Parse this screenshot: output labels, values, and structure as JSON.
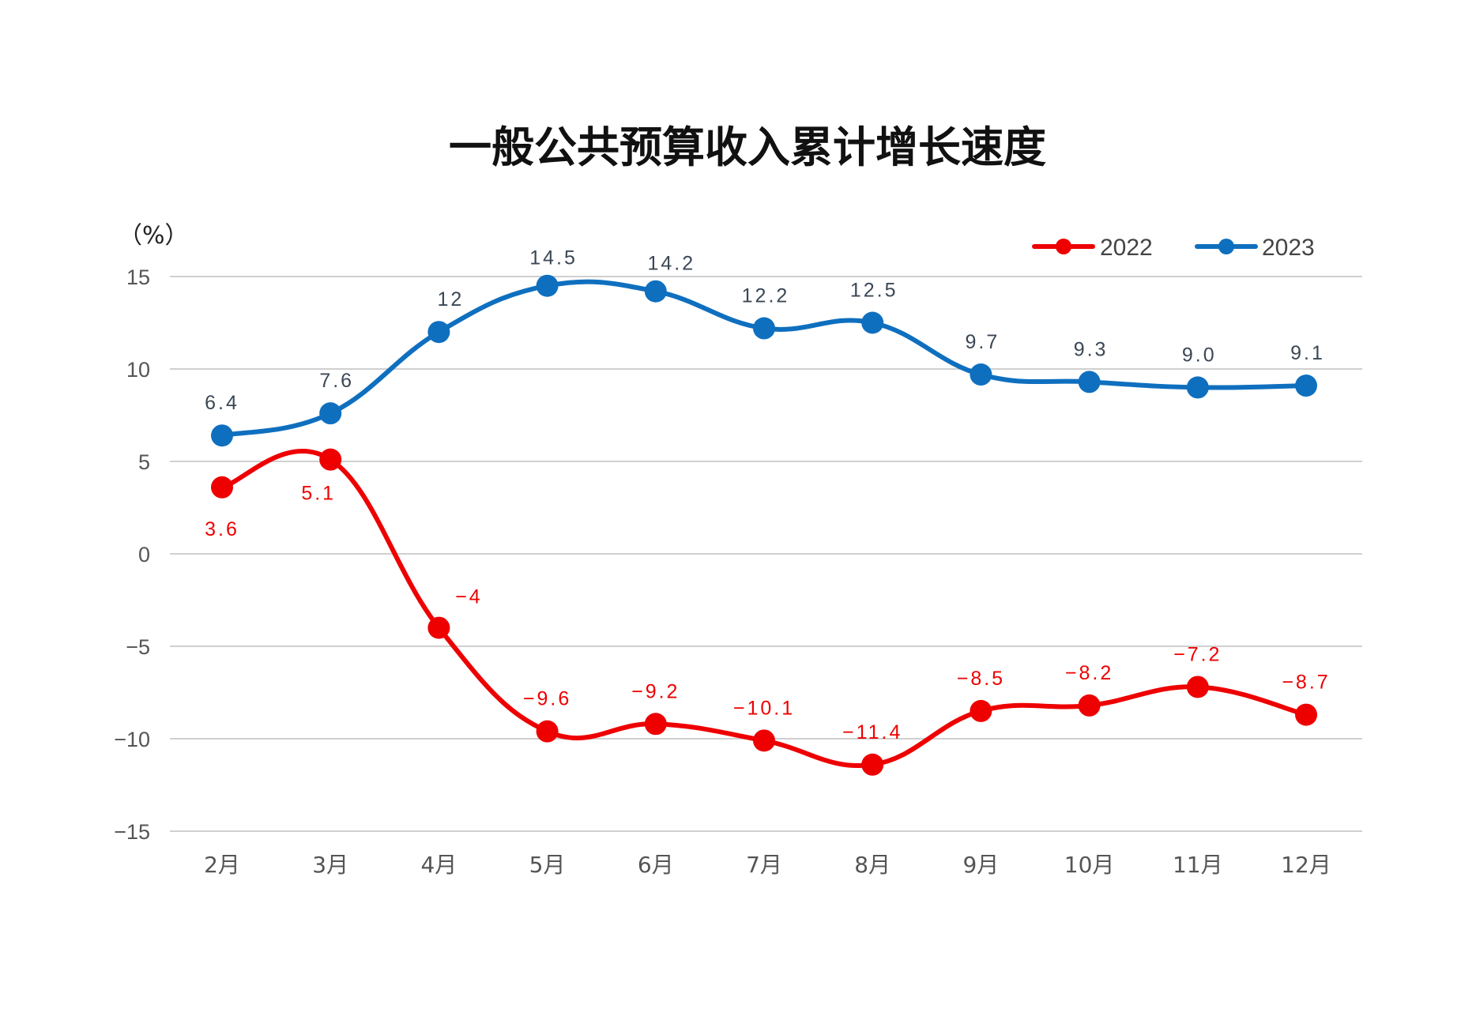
{
  "chart_data": {
    "type": "line",
    "title": "一般公共预算收入累计增长速度",
    "ylabel": "（%）",
    "xlabel": "",
    "ylim": [
      -15,
      15
    ],
    "yticks": [
      15,
      10,
      5,
      0,
      -5,
      -10,
      -15
    ],
    "ytick_labels": [
      "15",
      "10",
      "5",
      "0",
      "−5",
      "−10",
      "−15"
    ],
    "grid": true,
    "legend_position": "top-right",
    "categories": [
      "2月",
      "3月",
      "4月",
      "5月",
      "6月",
      "7月",
      "8月",
      "9月",
      "10月",
      "11月",
      "12月"
    ],
    "series": [
      {
        "name": "2022",
        "color": "#ee0000",
        "values": [
          3.6,
          5.1,
          -4,
          -9.6,
          -9.2,
          -10.1,
          -11.4,
          -8.5,
          -8.2,
          -7.2,
          -8.7
        ],
        "labels": [
          "3.6",
          "5.1",
          "−4",
          "−9.6",
          "−9.2",
          "−10.1",
          "−11.4",
          "−8.5",
          "−8.2",
          "−7.2",
          "−8.7"
        ]
      },
      {
        "name": "2023",
        "color": "#0f6fbf",
        "values": [
          6.4,
          7.6,
          12,
          14.5,
          14.2,
          12.2,
          12.5,
          9.7,
          9.3,
          9.0,
          9.1
        ],
        "labels": [
          "6.4",
          "7.6",
          "12",
          "14.5",
          "14.2",
          "12.2",
          "12.5",
          "9.7",
          "9.3",
          "9.0",
          "9.1"
        ]
      }
    ]
  }
}
